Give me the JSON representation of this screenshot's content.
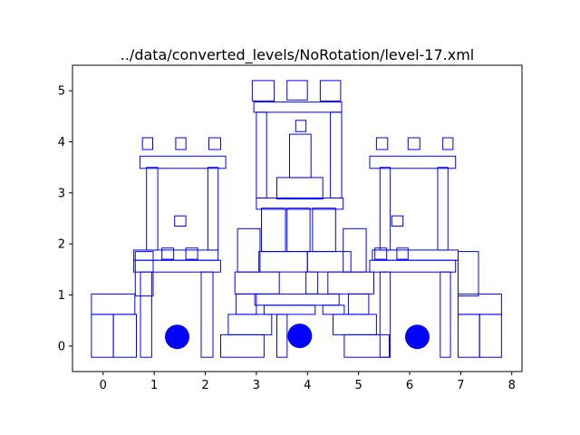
{
  "chart_data": {
    "type": "scatter",
    "title": "../data/converted_levels/NoRotation/level-17.xml",
    "xlabel": "",
    "ylabel": "",
    "xlim": [
      -0.6,
      8.2
    ],
    "ylim": [
      -0.5,
      5.5
    ],
    "xticks": [
      "0",
      "1",
      "2",
      "3",
      "4",
      "5",
      "6",
      "7",
      "8"
    ],
    "yticks": [
      "0",
      "1",
      "2",
      "3",
      "4",
      "5"
    ],
    "grid": false,
    "shape_color": "#0000ff",
    "blocks": [
      [
        -0.23,
        -0.22,
        0.2,
        0.62
      ],
      [
        0.2,
        -0.22,
        0.65,
        0.62
      ],
      [
        -0.23,
        0.62,
        0.62,
        1.02
      ],
      [
        0.63,
        0.98,
        0.98,
        1.85
      ],
      [
        0.73,
        -0.22,
        0.95,
        1.45
      ],
      [
        1.92,
        -0.22,
        2.15,
        1.45
      ],
      [
        0.6,
        1.45,
        2.3,
        1.68
      ],
      [
        0.6,
        1.68,
        2.25,
        1.88
      ],
      [
        1.15,
        1.7,
        1.38,
        1.92
      ],
      [
        1.62,
        1.7,
        1.85,
        1.92
      ],
      [
        1.4,
        2.35,
        1.62,
        2.55
      ],
      [
        0.85,
        1.88,
        1.07,
        3.5
      ],
      [
        2.05,
        1.88,
        2.25,
        3.5
      ],
      [
        0.72,
        3.48,
        2.4,
        3.72
      ],
      [
        0.77,
        3.85,
        0.97,
        4.08
      ],
      [
        1.42,
        3.85,
        1.62,
        4.08
      ],
      [
        2.07,
        3.85,
        2.3,
        4.08
      ],
      [
        5.35,
        3.85,
        5.57,
        4.08
      ],
      [
        5.97,
        3.85,
        6.2,
        4.08
      ],
      [
        6.65,
        3.85,
        6.85,
        4.08
      ],
      [
        5.22,
        3.48,
        6.9,
        3.72
      ],
      [
        5.42,
        1.88,
        5.62,
        3.5
      ],
      [
        6.55,
        1.88,
        6.75,
        3.5
      ],
      [
        5.65,
        2.35,
        5.87,
        2.55
      ],
      [
        5.32,
        1.7,
        5.55,
        1.92
      ],
      [
        5.75,
        1.7,
        5.97,
        1.92
      ],
      [
        5.22,
        1.45,
        6.9,
        1.68
      ],
      [
        5.27,
        1.68,
        6.95,
        1.88
      ],
      [
        5.42,
        -0.22,
        5.62,
        1.45
      ],
      [
        6.6,
        -0.22,
        6.8,
        1.45
      ],
      [
        6.95,
        0.98,
        7.35,
        1.85
      ],
      [
        6.95,
        0.62,
        7.8,
        1.02
      ],
      [
        6.95,
        -0.22,
        7.37,
        0.62
      ],
      [
        7.37,
        -0.22,
        7.8,
        0.62
      ],
      [
        2.3,
        -0.22,
        3.15,
        0.22
      ],
      [
        2.45,
        0.22,
        3.3,
        0.62
      ],
      [
        2.6,
        0.62,
        3.0,
        1.02
      ],
      [
        2.58,
        1.02,
        3.45,
        1.45
      ],
      [
        2.63,
        1.45,
        3.07,
        2.3
      ],
      [
        3.15,
        0.62,
        4.15,
        0.8
      ],
      [
        2.97,
        0.8,
        4.62,
        1.02
      ],
      [
        3.4,
        -0.22,
        3.6,
        0.62
      ],
      [
        3.97,
        1.02,
        4.2,
        1.45
      ],
      [
        4.72,
        -0.22,
        5.6,
        0.22
      ],
      [
        4.5,
        0.22,
        5.35,
        0.62
      ],
      [
        4.8,
        0.62,
        5.2,
        1.02
      ],
      [
        4.4,
        1.02,
        5.3,
        1.45
      ],
      [
        4.7,
        1.45,
        5.15,
        2.3
      ],
      [
        4.3,
        0.62,
        4.72,
        0.8
      ],
      [
        3.05,
        1.45,
        4.0,
        1.85
      ],
      [
        4.0,
        1.45,
        4.85,
        1.85
      ],
      [
        3.1,
        1.85,
        3.57,
        2.7
      ],
      [
        3.6,
        1.85,
        4.05,
        2.7
      ],
      [
        4.1,
        1.85,
        4.55,
        2.7
      ],
      [
        3.0,
        2.68,
        4.7,
        2.9
      ],
      [
        3.0,
        2.9,
        3.2,
        4.58
      ],
      [
        4.45,
        2.9,
        4.67,
        4.58
      ],
      [
        3.4,
        2.88,
        4.3,
        3.3
      ],
      [
        3.65,
        3.3,
        4.07,
        4.15
      ],
      [
        3.77,
        4.2,
        3.97,
        4.42
      ],
      [
        2.95,
        4.58,
        4.67,
        4.78
      ],
      [
        2.92,
        4.8,
        3.35,
        5.2
      ],
      [
        3.6,
        4.82,
        4.0,
        5.2
      ],
      [
        4.25,
        4.8,
        4.65,
        5.2
      ]
    ],
    "pigs": [
      [
        1.45,
        0.18
      ],
      [
        3.85,
        0.2
      ],
      [
        6.15,
        0.18
      ]
    ],
    "pig_radius": 0.24
  }
}
